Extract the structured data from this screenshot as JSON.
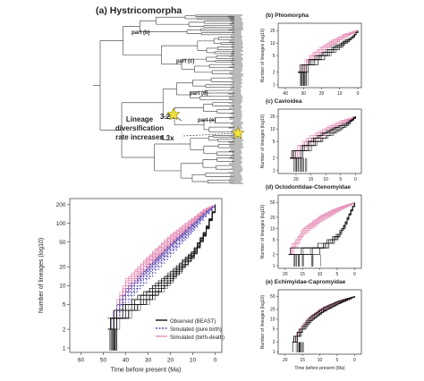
{
  "figure": {
    "panel_a": {
      "title": "(a) Hystricomorpha",
      "labels": [
        "part (b)",
        "part (c)",
        "part (d)",
        "part (e)"
      ],
      "annotation": {
        "line1": "Lineage",
        "line2": "diversification",
        "line3": "rate increases"
      },
      "rates": [
        "3.2x",
        "4.3x"
      ]
    },
    "legend": {
      "observed": "Observed (BEAST)",
      "pure_birth": "Simulated (pure birth)",
      "birth_death": "Simulated (birth-death)"
    },
    "colors": {
      "observed": "#111111",
      "pure_birth": "#5a4fb8",
      "birth_death": "#e58fb8",
      "tree": "#555555",
      "star": "#f2e23a"
    }
  },
  "chart_data": [
    {
      "id": "main",
      "type": "line",
      "title": "",
      "xlabel": "Time before present (Ma)",
      "ylabel": "Number of lineages (log10)",
      "x_reversed": true,
      "y_log": true,
      "xlim": [
        65,
        -3
      ],
      "ylim": [
        0.85,
        250
      ],
      "xticks": [
        60,
        50,
        40,
        30,
        20,
        10,
        0
      ],
      "yticks": [
        1,
        2,
        5,
        10,
        20,
        50,
        100,
        200
      ],
      "series": [
        {
          "name": "Observed (BEAST)",
          "x": [
            48,
            45,
            40,
            30,
            20,
            10,
            5,
            0
          ],
          "y": [
            2,
            3,
            4,
            7,
            14,
            33,
            70,
            200
          ]
        },
        {
          "name": "Simulated (pure birth)",
          "x": [
            48,
            40,
            30,
            20,
            10,
            5,
            0
          ],
          "y": [
            2,
            7,
            17,
            40,
            90,
            140,
            200
          ]
        },
        {
          "name": "Simulated (birth-death)",
          "x": [
            48,
            40,
            30,
            20,
            10,
            5,
            0
          ],
          "y": [
            2,
            10,
            24,
            55,
            110,
            160,
            200
          ]
        }
      ]
    },
    {
      "id": "b",
      "type": "line",
      "title": "(b) Phiomorpha",
      "xlabel": "",
      "ylabel": "Number of lineages (log10)",
      "xlim": [
        44,
        -2
      ],
      "ylim": [
        0.85,
        30
      ],
      "xticks": [
        40,
        30,
        20,
        10,
        0
      ],
      "yticks": [
        1,
        2,
        5,
        10,
        20
      ],
      "series": [
        {
          "name": "Observed (BEAST)",
          "x": [
            33,
            28,
            20,
            10,
            3,
            0
          ],
          "y": [
            2,
            3,
            5,
            9,
            14,
            20
          ]
        },
        {
          "name": "Simulated (birth-death)",
          "x": [
            33,
            25,
            15,
            8,
            0
          ],
          "y": [
            2,
            5,
            10,
            15,
            20
          ]
        }
      ]
    },
    {
      "id": "c",
      "type": "line",
      "title": "(c) Cavioidea",
      "xlabel": "",
      "ylabel": "Number of lineages (log10)",
      "xlim": [
        26,
        -2
      ],
      "ylim": [
        0.85,
        30
      ],
      "xticks": [
        20,
        15,
        10,
        5,
        0
      ],
      "yticks": [
        1,
        2,
        5,
        10,
        20
      ],
      "series": [
        {
          "name": "Observed (BEAST)",
          "x": [
            22,
            18,
            14,
            9,
            3,
            0
          ],
          "y": [
            2,
            3,
            5,
            8,
            13,
            20
          ]
        },
        {
          "name": "Simulated (birth-death)",
          "x": [
            22,
            16,
            10,
            5,
            0
          ],
          "y": [
            2,
            5,
            9,
            14,
            20
          ]
        }
      ]
    },
    {
      "id": "d",
      "type": "line",
      "title": "(d) Octodontidae-Ctenomyidae",
      "xlabel": "",
      "ylabel": "Number of lineages (log10)",
      "xlim": [
        22,
        -2
      ],
      "ylim": [
        0.85,
        80
      ],
      "xticks": [
        20,
        15,
        10,
        5,
        0
      ],
      "yticks": [
        1,
        2,
        5,
        10,
        20,
        50
      ],
      "series": [
        {
          "name": "Observed (BEAST)",
          "x": [
            19,
            10,
            5,
            3,
            1.5,
            0
          ],
          "y": [
            2,
            3,
            6,
            12,
            25,
            50
          ]
        },
        {
          "name": "Simulated (birth-death)",
          "x": [
            19,
            15,
            10,
            5,
            0
          ],
          "y": [
            2,
            8,
            18,
            32,
            50
          ]
        }
      ]
    },
    {
      "id": "e",
      "type": "line",
      "title": "(e) Echimyidae-Capromyidae",
      "xlabel": "Time before present (Ma)",
      "ylabel": "Number of lineages (log10)",
      "xlim": [
        22,
        -2
      ],
      "ylim": [
        0.85,
        80
      ],
      "xticks": [
        20,
        15,
        10,
        5,
        0
      ],
      "yticks": [
        1,
        2,
        5,
        10,
        20,
        50
      ],
      "series": [
        {
          "name": "Observed (BEAST)",
          "x": [
            18,
            16,
            13,
            9,
            5,
            0
          ],
          "y": [
            2,
            4,
            10,
            20,
            32,
            50
          ]
        },
        {
          "name": "Simulated (birth-death)",
          "x": [
            18,
            14,
            10,
            5,
            0
          ],
          "y": [
            2,
            8,
            18,
            32,
            50
          ]
        }
      ]
    }
  ]
}
